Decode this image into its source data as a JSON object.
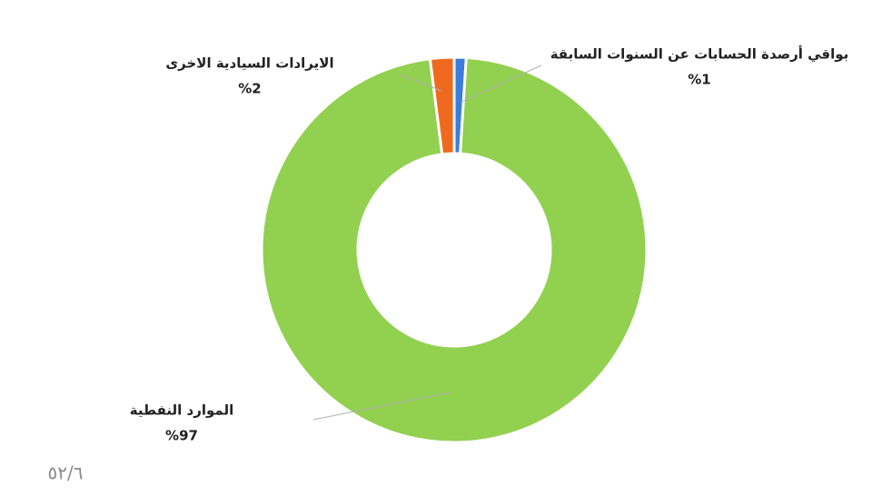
{
  "chart_data": {
    "type": "donut",
    "categories": [
      "بواقي أرصدة الحسابات عن السنوات السابقة",
      "الموارد النفطية",
      "الايرادات السيادية الاخرى"
    ],
    "values": [
      1,
      97,
      2
    ],
    "value_labels": [
      "%1",
      "%97",
      "%2"
    ],
    "colors": [
      "#3c7ddc",
      "#92d050",
      "#ef6a1e"
    ],
    "footnote": "٥٢/٦"
  }
}
